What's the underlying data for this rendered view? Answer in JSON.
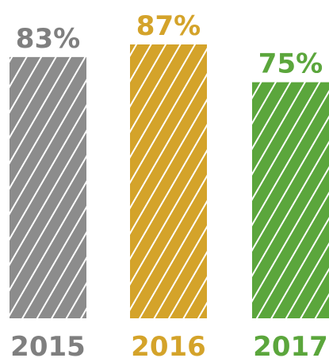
{
  "chart_data": {
    "type": "bar",
    "categories": [
      "2015",
      "2016",
      "2017"
    ],
    "values": [
      83,
      87,
      75
    ],
    "value_labels": [
      "83%",
      "87%",
      "75%"
    ],
    "colors": [
      "#8c8c8c",
      "#d4a32a",
      "#5ba63c"
    ],
    "label_colors": [
      "#7f7f7f",
      "#d4a32a",
      "#5ba63c"
    ],
    "pattern": "diagonal-white-hatch",
    "title": "",
    "xlabel": "",
    "ylabel": "",
    "ylim": [
      0,
      100
    ],
    "grid": false,
    "legend": "none"
  }
}
